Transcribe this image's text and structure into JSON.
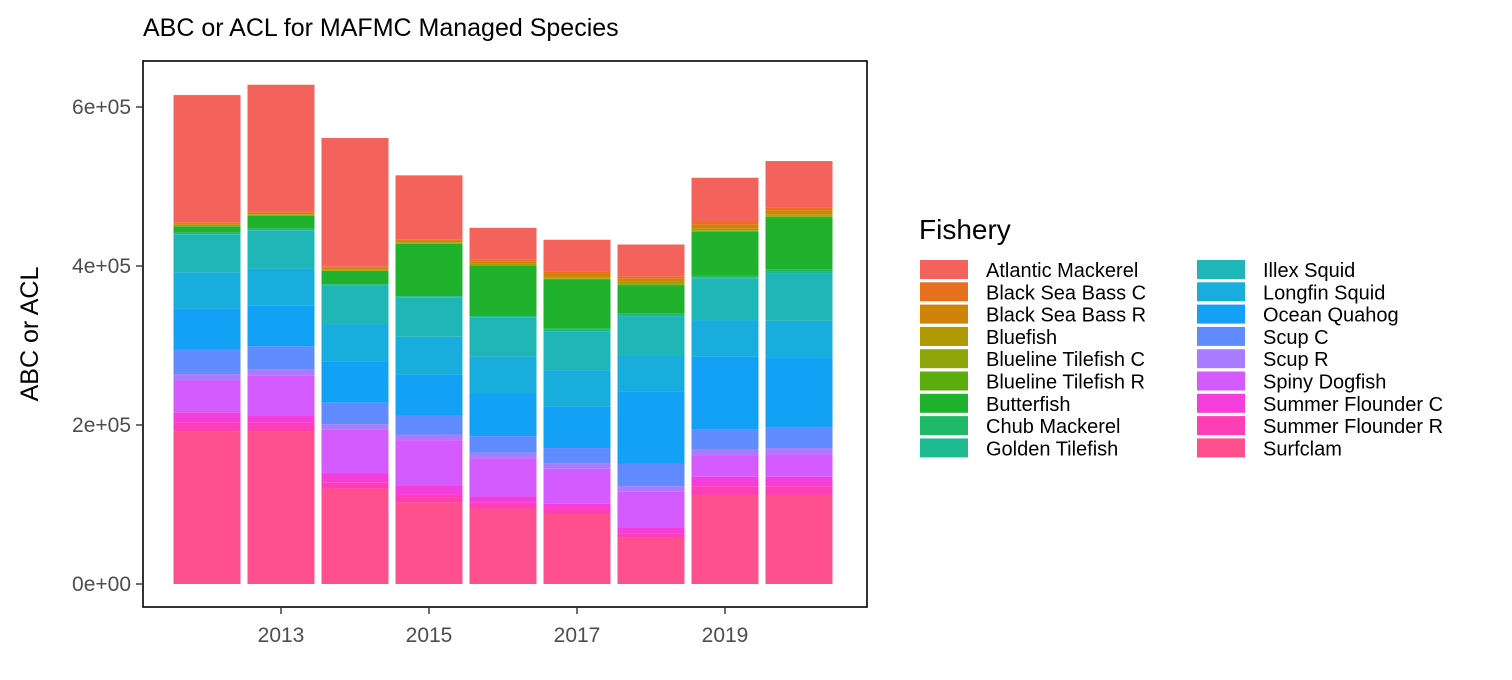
{
  "chart_data": {
    "type": "bar",
    "stacked": true,
    "title": "ABC or ACL for MAFMC Managed Species",
    "xlabel": "",
    "ylabel": "ABC or ACL",
    "x": [
      2012,
      2013,
      2014,
      2015,
      2016,
      2017,
      2018,
      2019,
      2020
    ],
    "x_ticks": [
      2013,
      2015,
      2017,
      2019
    ],
    "x_tick_labels": [
      "2013",
      "2015",
      "2017",
      "2019"
    ],
    "ylim": [
      0,
      640000
    ],
    "y_ticks": [
      0,
      200000,
      400000,
      600000
    ],
    "y_tick_labels": [
      "0e+00",
      "2e+05",
      "4e+05",
      "6e+05"
    ],
    "grid": false,
    "legend": {
      "title": "Fishery",
      "position": "right",
      "columns": 2
    },
    "series": [
      {
        "name": "Surfclam",
        "color": "#FF4F8C",
        "values": [
          192000,
          192000,
          120000,
          103000,
          95000,
          88000,
          58000,
          112000,
          112000
        ]
      },
      {
        "name": "Summer Flounder R",
        "color": "#FF3EB5",
        "values": [
          11000,
          11000,
          8000,
          9000,
          7000,
          7000,
          6000,
          11000,
          11000
        ]
      },
      {
        "name": "Summer Flounder C",
        "color": "#F43EDC",
        "values": [
          13000,
          9000,
          11000,
          12000,
          8000,
          6000,
          7000,
          12000,
          12000
        ]
      },
      {
        "name": "Spiny Dogfish",
        "color": "#D35BFF",
        "values": [
          40000,
          50000,
          55000,
          57000,
          48000,
          44000,
          45000,
          26000,
          28000
        ]
      },
      {
        "name": "Scup R",
        "color": "#A97BFF",
        "values": [
          8000,
          8000,
          7000,
          7000,
          7000,
          7000,
          7000,
          8000,
          8000
        ]
      },
      {
        "name": "Scup C",
        "color": "#618CFF",
        "values": [
          31000,
          29000,
          27000,
          24000,
          21000,
          19000,
          28000,
          25000,
          26000
        ]
      },
      {
        "name": "Ocean Quahog",
        "color": "#12A1F5",
        "values": [
          51000,
          51000,
          52000,
          51000,
          53000,
          52000,
          91000,
          92000,
          88000
        ]
      },
      {
        "name": "Longfin Squid",
        "color": "#18ADDC",
        "values": [
          46000,
          47000,
          47000,
          48000,
          47000,
          46000,
          46000,
          46000,
          46000
        ]
      },
      {
        "name": "Illex Squid",
        "color": "#1FB6B8",
        "values": [
          48000,
          48000,
          48000,
          49000,
          49000,
          49000,
          49000,
          52000,
          59000
        ]
      },
      {
        "name": "Golden Tilefish",
        "color": "#1DBA91",
        "values": [
          2000,
          2000,
          2000,
          2000,
          2000,
          2000,
          2000,
          2000,
          3000
        ]
      },
      {
        "name": "Chub Mackerel",
        "color": "#1FB96A",
        "values": [
          0,
          0,
          0,
          0,
          0,
          1000,
          1000,
          2000,
          3000
        ]
      },
      {
        "name": "Butterfish",
        "color": "#20B22C",
        "values": [
          8000,
          16000,
          17000,
          66000,
          64000,
          62000,
          36000,
          55000,
          65000
        ]
      },
      {
        "name": "Blueline Tilefish R",
        "color": "#5BAC0E",
        "values": [
          0,
          0,
          0,
          0,
          0,
          0,
          1000,
          1000,
          1000
        ]
      },
      {
        "name": "Blueline Tilefish C",
        "color": "#8FA60B",
        "values": [
          0,
          0,
          0,
          0,
          0,
          1000,
          1000,
          1000,
          1000
        ]
      },
      {
        "name": "Bluefish",
        "color": "#B09A03",
        "values": [
          2000,
          2000,
          2000,
          2000,
          2000,
          2000,
          2000,
          2000,
          2000
        ]
      },
      {
        "name": "Black Sea Bass R",
        "color": "#CF8307",
        "values": [
          2000,
          2000,
          2000,
          2000,
          3000,
          4000,
          4000,
          5000,
          5000
        ]
      },
      {
        "name": "Black Sea Bass C",
        "color": "#E5701E",
        "values": [
          1000,
          1000,
          1000,
          1000,
          2000,
          3000,
          3000,
          4000,
          4000
        ]
      },
      {
        "name": "Atlantic Mackerel",
        "color": "#F4625C",
        "values": [
          160000,
          160000,
          162000,
          81000,
          40000,
          40000,
          40000,
          55000,
          58000
        ]
      }
    ],
    "legend_entries": [
      "Atlantic Mackerel",
      "Black Sea Bass C",
      "Black Sea Bass R",
      "Bluefish",
      "Blueline Tilefish C",
      "Blueline Tilefish R",
      "Butterfish",
      "Chub Mackerel",
      "Golden Tilefish",
      "Illex Squid",
      "Longfin Squid",
      "Ocean Quahog",
      "Scup C",
      "Scup R",
      "Spiny Dogfish",
      "Summer Flounder C",
      "Summer Flounder R",
      "Surfclam"
    ]
  }
}
